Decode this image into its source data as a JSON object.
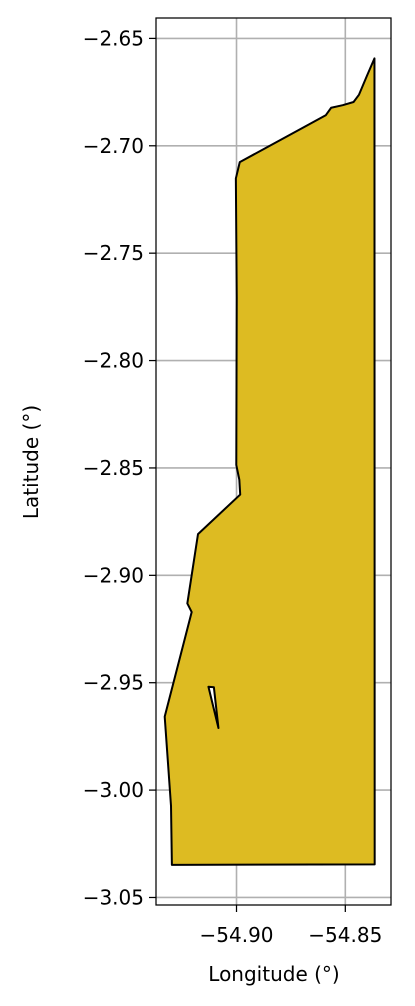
{
  "chart_data": {
    "type": "map",
    "xlabel": "Longitude (°)",
    "ylabel": "Latitude (°)",
    "xlim": [
      -54.937,
      -54.829
    ],
    "ylim": [
      -3.0535,
      -2.6405
    ],
    "x_ticks": [
      {
        "value": -54.9,
        "label": "−54.90"
      },
      {
        "value": -54.85,
        "label": "−54.85"
      }
    ],
    "y_ticks": [
      {
        "value": -2.65,
        "label": "−2.65"
      },
      {
        "value": -2.7,
        "label": "−2.70"
      },
      {
        "value": -2.75,
        "label": "−2.75"
      },
      {
        "value": -2.8,
        "label": "−2.80"
      },
      {
        "value": -2.85,
        "label": "−2.85"
      },
      {
        "value": -2.9,
        "label": "−2.90"
      },
      {
        "value": -2.95,
        "label": "−2.95"
      },
      {
        "value": -3.0,
        "label": "−3.00"
      },
      {
        "value": -3.05,
        "label": "−3.05"
      }
    ],
    "grid": true,
    "colors": {
      "fill": "#DDBB22",
      "edge": "#000000",
      "grid": "#b0b0b0",
      "hole_fill": "#ffffff"
    },
    "polygon": {
      "outer": [
        [
          -54.8366,
          -2.6593
        ],
        [
          -54.8401,
          -2.6675
        ],
        [
          -54.8437,
          -2.6762
        ],
        [
          -54.8462,
          -2.6796
        ],
        [
          -54.8512,
          -2.6811
        ],
        [
          -54.8565,
          -2.6823
        ],
        [
          -54.859,
          -2.6858
        ],
        [
          -54.8985,
          -2.7076
        ],
        [
          -54.9003,
          -2.7152
        ],
        [
          -54.8999,
          -2.7706
        ],
        [
          -54.9001,
          -2.8486
        ],
        [
          -54.8987,
          -2.8555
        ],
        [
          -54.8983,
          -2.8624
        ],
        [
          -54.9177,
          -2.8808
        ],
        [
          -54.9226,
          -2.9131
        ],
        [
          -54.9206,
          -2.9171
        ],
        [
          -54.933,
          -2.9658
        ],
        [
          -54.9301,
          -3.0074
        ],
        [
          -54.9297,
          -3.0348
        ],
        [
          -54.8365,
          -3.0346
        ],
        [
          -54.8366,
          -2.6593
        ]
      ],
      "hole": [
        [
          -54.9129,
          -2.9519
        ],
        [
          -54.9104,
          -2.9521
        ],
        [
          -54.9083,
          -2.9711
        ],
        [
          -54.9129,
          -2.9519
        ]
      ]
    }
  }
}
